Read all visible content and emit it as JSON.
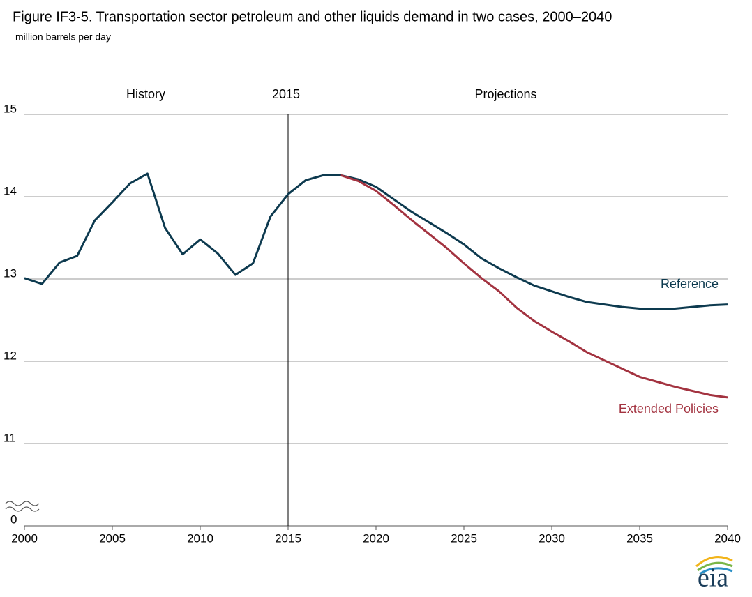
{
  "chart_data": {
    "type": "line",
    "title": "Figure IF3-5. Transportation sector petroleum and other liquids demand in two cases, 2000–2040",
    "subtitle": "million barrels per day",
    "x": [
      2000,
      2001,
      2002,
      2003,
      2004,
      2005,
      2006,
      2007,
      2008,
      2009,
      2010,
      2011,
      2012,
      2013,
      2014,
      2015,
      2016,
      2017,
      2018,
      2019,
      2020,
      2021,
      2022,
      2023,
      2024,
      2025,
      2026,
      2027,
      2028,
      2029,
      2030,
      2031,
      2032,
      2033,
      2034,
      2035,
      2036,
      2037,
      2038,
      2039,
      2040
    ],
    "series": [
      {
        "name": "Reference",
        "color": "#0d3a4f",
        "values": [
          13.01,
          12.94,
          13.2,
          13.28,
          13.71,
          13.93,
          14.16,
          14.28,
          13.62,
          13.3,
          13.48,
          13.31,
          13.05,
          13.19,
          13.76,
          14.03,
          14.2,
          14.26,
          14.26,
          14.21,
          14.12,
          13.97,
          13.82,
          13.69,
          13.56,
          13.42,
          13.25,
          13.13,
          13.02,
          12.92,
          12.85,
          12.78,
          12.72,
          12.69,
          12.66,
          12.64,
          12.64,
          12.64,
          12.66,
          12.68,
          12.69
        ]
      },
      {
        "name": "Extended Policies",
        "color": "#a33340",
        "values": [
          null,
          null,
          null,
          null,
          null,
          null,
          null,
          null,
          null,
          null,
          null,
          null,
          null,
          null,
          null,
          null,
          null,
          null,
          14.26,
          14.19,
          14.07,
          13.9,
          13.72,
          13.55,
          13.38,
          13.19,
          13.01,
          12.85,
          12.65,
          12.49,
          12.36,
          12.24,
          12.11,
          12.01,
          11.91,
          11.81,
          11.75,
          11.69,
          11.64,
          11.59,
          11.56
        ]
      }
    ],
    "xlim": [
      2000,
      2040
    ],
    "xticks": [
      2000,
      2005,
      2010,
      2015,
      2020,
      2025,
      2030,
      2035,
      2040
    ],
    "ylim": [
      10,
      15
    ],
    "yticks": [
      11,
      12,
      13,
      14,
      15
    ],
    "y_break_tick": 0,
    "grid": true,
    "vline": {
      "x": 2015,
      "label": "2015"
    },
    "annotations": [
      "History",
      "Projections"
    ],
    "logo": "eia"
  }
}
